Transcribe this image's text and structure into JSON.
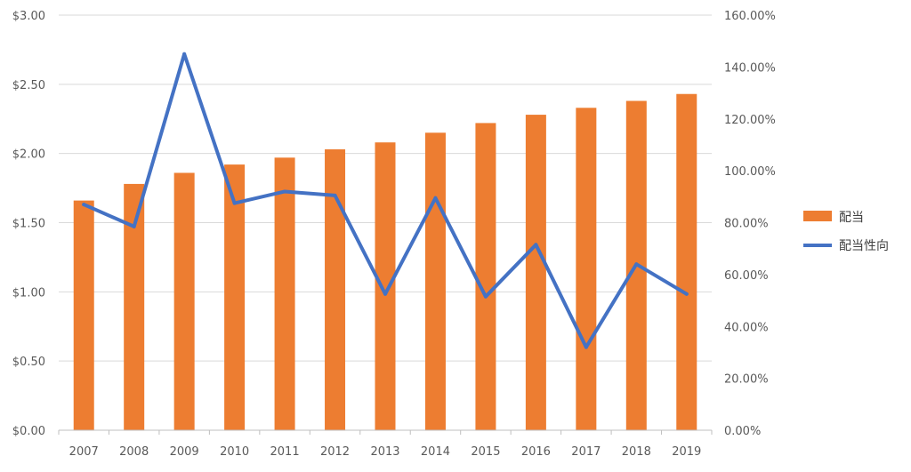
{
  "chart_data": {
    "type": "bar+line",
    "categories": [
      "2007",
      "2008",
      "2009",
      "2010",
      "2011",
      "2012",
      "2013",
      "2014",
      "2015",
      "2016",
      "2017",
      "2018",
      "2019"
    ],
    "series": [
      {
        "name": "配当",
        "type": "bar",
        "axis": "left",
        "color": "#ED7D31",
        "values": [
          1.66,
          1.78,
          1.86,
          1.92,
          1.97,
          2.03,
          2.08,
          2.15,
          2.22,
          2.28,
          2.33,
          2.38,
          2.43
        ]
      },
      {
        "name": "配当性向",
        "type": "line",
        "axis": "right",
        "color": "#4472C4",
        "values": [
          87.0,
          78.5,
          145.0,
          87.5,
          92.0,
          90.5,
          52.5,
          89.5,
          51.5,
          71.5,
          32.0,
          64.0,
          52.5
        ]
      }
    ],
    "y_left": {
      "lim": [
        0,
        3
      ],
      "ticks": [
        0,
        0.5,
        1,
        1.5,
        2,
        2.5,
        3
      ],
      "tick_labels": [
        "$0.00",
        "$0.50",
        "$1.00",
        "$1.50",
        "$2.00",
        "$2.50",
        "$3.00"
      ]
    },
    "y_right": {
      "lim": [
        0,
        160
      ],
      "ticks": [
        0,
        20,
        40,
        60,
        80,
        100,
        120,
        140,
        160
      ],
      "tick_labels": [
        "0.00%",
        "20.00%",
        "40.00%",
        "60.00%",
        "80.00%",
        "100.00%",
        "120.00%",
        "140.00%",
        "160.00%"
      ]
    },
    "grid": true,
    "legend": "right"
  }
}
